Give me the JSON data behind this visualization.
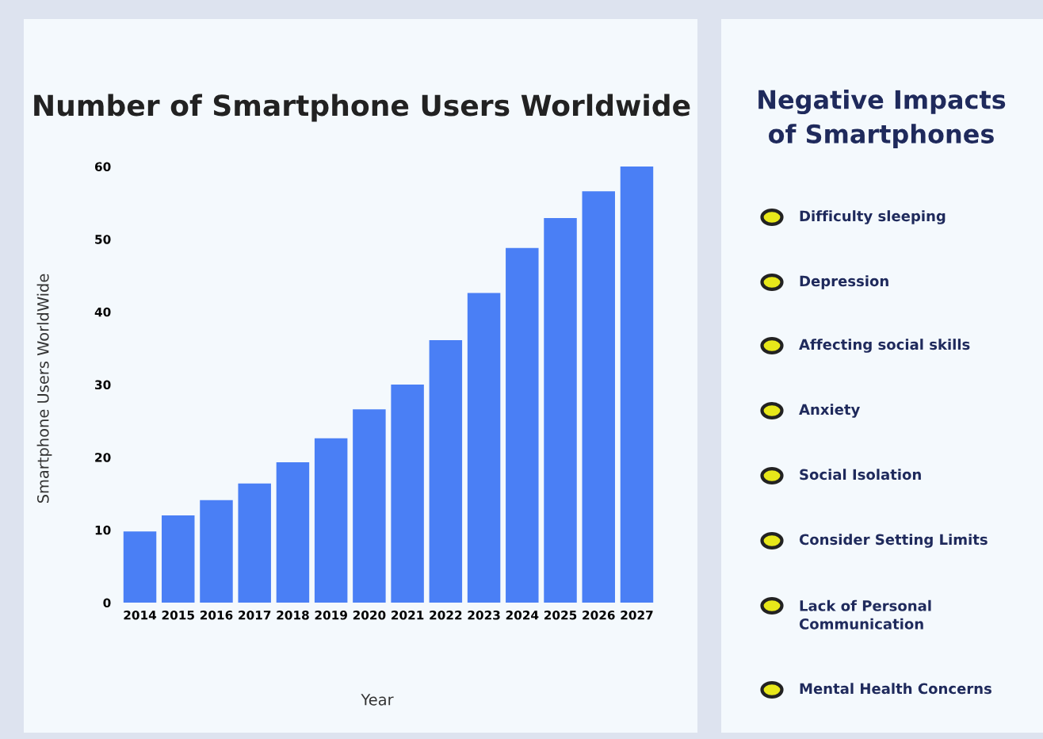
{
  "chart_data": [
    {
      "type": "bar",
      "title": "Number of Smartphone Users Worldwide",
      "xlabel": "Year",
      "ylabel": "Smartphone Users WorldWide",
      "categories": [
        "2014",
        "2015",
        "2016",
        "2017",
        "2018",
        "2019",
        "2020",
        "2021",
        "2022",
        "2023",
        "2024",
        "2025",
        "2026",
        "2027"
      ],
      "values": [
        9.8,
        12.0,
        14.1,
        16.4,
        19.3,
        22.6,
        26.6,
        30.0,
        36.1,
        42.6,
        48.8,
        52.9,
        56.6,
        60.0
      ],
      "color": "#4a7ff5",
      "ylim": [
        0,
        60
      ],
      "yticks": [
        0,
        10,
        20,
        30,
        40,
        50,
        60
      ],
      "grid": false
    },
    {
      "type": "other",
      "title": "Negative Impacts of Smartphones",
      "annotations": [
        "Difficulty sleeping",
        "Depression",
        "Affecting social skills",
        "Anxiety",
        "Social Isolation",
        "Consider Setting Limits",
        "Lack of Personal Communication",
        "Mental Health Concerns"
      ]
    }
  ]
}
